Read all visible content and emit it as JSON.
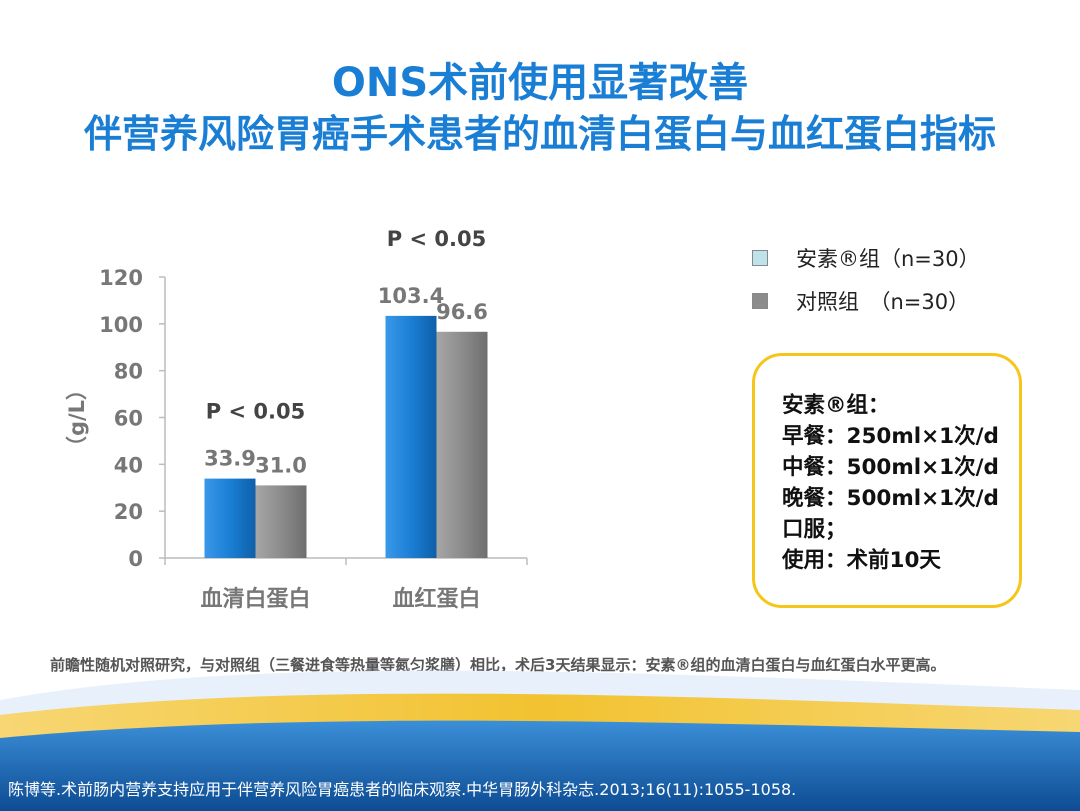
{
  "slide": {
    "title_line1": "ONS术前使用显著改善",
    "title_line2": "伴营养风险胃癌手术患者的血清白蛋白与血红蛋白指标",
    "footnote": "前瞻性随机对照研究，与对照组（三餐进食等热量等氮匀浆膳）相比，术后3天结果显示：安素®组的血清白蛋白与血红蛋白水平更高。",
    "citation": "陈博等.术前肠内营养支持应用于伴营养风险胃癌患者的临床观察.中华胃肠外科杂志.2013;16(11):1055-1058."
  },
  "legend": [
    {
      "label": "安素®组（n=30）",
      "color": "#bfe3ea"
    },
    {
      "label": "对照组　（n=30）",
      "color": "#8c8c8c"
    }
  ],
  "infobox": {
    "lines": [
      "安素®组：",
      "早餐：250ml×1次/d",
      "中餐：500ml×1次/d",
      "晚餐：500ml×1次/d",
      "口服；",
      "使用：术前10天"
    ]
  },
  "colors": {
    "title": "#1a7fd4",
    "series_ensure": "#1a7fd4",
    "series_control": "#8c8c8c",
    "box_border": "#f5c518",
    "wave_blue": "#1e6fc0"
  },
  "chart_data": {
    "type": "bar",
    "categories": [
      "血清白蛋白",
      "血红蛋白"
    ],
    "series": [
      {
        "name": "安素®组",
        "values": [
          33.9,
          103.4
        ]
      },
      {
        "name": "对照组",
        "values": [
          31.0,
          96.6
        ]
      }
    ],
    "data_labels": [
      [
        "33.9",
        "31.0"
      ],
      [
        "103.4",
        "96.6"
      ]
    ],
    "significance": [
      "P < 0.05",
      "P < 0.05"
    ],
    "ylabel": "（g/L）",
    "ylim": [
      0,
      120
    ],
    "yticks": [
      0,
      20,
      40,
      60,
      80,
      100,
      120
    ],
    "grid": false,
    "legend_position": "top-right"
  }
}
